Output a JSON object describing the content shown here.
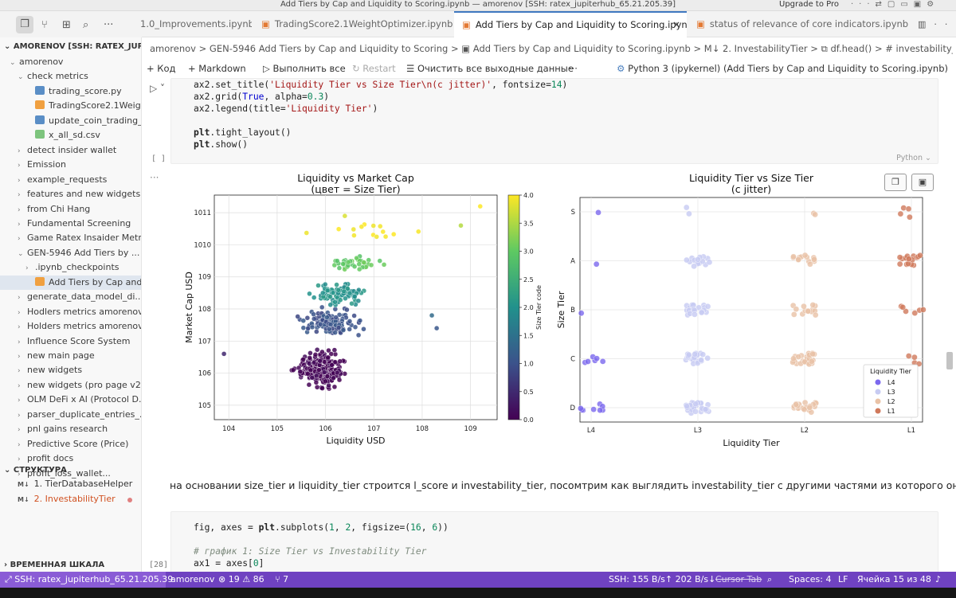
{
  "window": {
    "title": "Add Tiers by Cap and Liquidity to Scoring.ipynb — amorenov [SSH: ratex_jupiterhub_65.21.205.39]",
    "upgrade": "Upgrade to Pro"
  },
  "tabs": [
    {
      "label": "1.0_Improvements.ipynb",
      "active": false
    },
    {
      "label": "TradingScore2.1WeightOptimizer.ipynb",
      "active": false
    },
    {
      "label": "Add Tiers by Cap and Liquidity to Scoring.ipynb",
      "active": true
    },
    {
      "label": "status of relevance of core indicators.ipynb",
      "active": false
    }
  ],
  "sidebar": {
    "root": "AMORENOV [SSH: RATEX_JUPI...",
    "items": [
      {
        "label": "amorenov",
        "type": "folder-open",
        "indent": 1
      },
      {
        "label": "check metrics",
        "type": "folder-open",
        "indent": 2
      },
      {
        "label": "trading_score.py",
        "type": "py",
        "indent": 3
      },
      {
        "label": "TradingScore2.1Weight...",
        "type": "nb",
        "indent": 3
      },
      {
        "label": "update_coin_trading_sc...",
        "type": "py",
        "indent": 3
      },
      {
        "label": "x_all_sd.csv",
        "type": "csv",
        "indent": 3
      },
      {
        "label": "detect insider wallet",
        "type": "folder",
        "indent": 2
      },
      {
        "label": "Emission",
        "type": "folder",
        "indent": 2
      },
      {
        "label": "example_requests",
        "type": "folder",
        "indent": 2
      },
      {
        "label": "features and new widgets...",
        "type": "folder",
        "indent": 2
      },
      {
        "label": "from Chi Hang",
        "type": "folder",
        "indent": 2
      },
      {
        "label": "Fundamental Screening",
        "type": "folder",
        "indent": 2
      },
      {
        "label": "Game Ratex Insaider Metr...",
        "type": "folder",
        "indent": 2
      },
      {
        "label": "GEN-5946 Add Tiers by ...",
        "type": "folder-open",
        "indent": 2
      },
      {
        "label": ".ipynb_checkpoints",
        "type": "folder",
        "indent": 3
      },
      {
        "label": "Add Tiers by Cap and Li...",
        "type": "nb",
        "indent": 3,
        "selected": true
      },
      {
        "label": "generate_data_model_di...",
        "type": "folder",
        "indent": 2
      },
      {
        "label": "Hodlers metrics amorenov",
        "type": "folder",
        "indent": 2
      },
      {
        "label": "Holders metrics amorenov",
        "type": "folder",
        "indent": 2
      },
      {
        "label": "Influence Score System",
        "type": "folder",
        "indent": 2
      },
      {
        "label": "new main page",
        "type": "folder",
        "indent": 2
      },
      {
        "label": "new widgets",
        "type": "folder",
        "indent": 2
      },
      {
        "label": "new widgets (pro page v2...",
        "type": "folder",
        "indent": 2
      },
      {
        "label": "OLM DeFi x AI (Protocol D...",
        "type": "folder",
        "indent": 2
      },
      {
        "label": "parser_duplicate_entries_...",
        "type": "folder",
        "indent": 2
      },
      {
        "label": "pnl gains research",
        "type": "folder",
        "indent": 2
      },
      {
        "label": "Predictive Score (Price)",
        "type": "folder",
        "indent": 2
      },
      {
        "label": "profit docs",
        "type": "folder",
        "indent": 2
      },
      {
        "label": "profit_loss_wallet...",
        "type": "folder",
        "indent": 2
      }
    ],
    "outline_header": "СТРУКТУРА",
    "outline": [
      {
        "label": "1. TierDatabaseHelper",
        "tag": "M↓",
        "active": false
      },
      {
        "label": "2. InvestabilityTier",
        "tag": "M↓",
        "active": true
      }
    ],
    "timeline": "ВРЕМЕННАЯ ШКАЛА"
  },
  "breadcrumb": "amorenov > GEN-5946 Add Tiers by Cap and Liquidity to Scoring > ▣ Add Tiers by Cap and Liquidity to Scoring.ipynb > M↓ 2. InvestabilityTier > ⧉ df.head() > # investability_tier сделай как l_tier",
  "toolbar": {
    "code": "+ Код",
    "markdown": "+ Markdown",
    "run_all": "▷ Выполнить все",
    "restart": "↻ Restart",
    "clear": "☰ Очистить все выходные данные",
    "more": "···",
    "kernel": "Python 3 (ipykernel) (Add Tiers by Cap and Liquidity to Scoring.ipynb)"
  },
  "cell1": {
    "exec": "[ ]",
    "lang": "Python ⌄",
    "lines": [
      "ax2.set_title('Liquidity Tier vs Size Tier\\n(c jitter)', fontsize=14)",
      "ax2.grid(True, alpha=0.3)",
      "ax2.legend(title='Liquidity Tier')",
      "",
      "plt.tight_layout()",
      "plt.show()"
    ]
  },
  "markdown_text": "на основании size_tier и liquidity_tier строится l_score и investability_tier, посомтрим как выглядить investability_tier с другими частями из которого он строился",
  "cell2": {
    "exec": "[28]",
    "lines": [
      "fig, axes = plt.subplots(1, 2, figsize=(16, 6))",
      "",
      "# график 1: Size Tier vs Investability Tier",
      "ax1 = axes[0]"
    ]
  },
  "chart_data": [
    {
      "type": "scatter",
      "title": "Liquidity vs Market Cap\n(цвет = Size Tier)",
      "xlabel": "Liquidity USD",
      "ylabel": "Market Cap USD",
      "xscale": "log",
      "yscale": "log",
      "x_ticks": [
        "10^4",
        "10^5",
        "10^6",
        "10^7",
        "10^8",
        "10^9"
      ],
      "y_ticks": [
        "10^5",
        "10^6",
        "10^7",
        "10^8",
        "10^9",
        "10^10",
        "10^11"
      ],
      "colorbar": {
        "label": "Size Tier code",
        "min": 0.0,
        "max": 4.0,
        "ticks": [
          "0.0",
          "0.5",
          "1.0",
          "1.5",
          "2.0",
          "2.5",
          "3.0",
          "3.5",
          "4.0"
        ]
      },
      "grid": true,
      "clusters": [
        {
          "size_tier_code": 0,
          "logx_center": 5.9,
          "logx_spread": 0.45,
          "logy_center": 6.1,
          "logy_spread": 0.55,
          "count": 230
        },
        {
          "size_tier_code": 1,
          "logx_center": 6.1,
          "logx_spread": 0.55,
          "logy_center": 7.6,
          "logy_spread": 0.35,
          "count": 120
        },
        {
          "size_tier_code": 2,
          "logx_center": 6.3,
          "logx_spread": 0.55,
          "logy_center": 8.5,
          "logy_spread": 0.35,
          "count": 90
        },
        {
          "size_tier_code": 3,
          "logx_center": 6.6,
          "logx_spread": 0.5,
          "logy_center": 9.4,
          "logy_spread": 0.25,
          "count": 40
        },
        {
          "size_tier_code": 4,
          "logx_center": 7.0,
          "logx_spread": 1.0,
          "logy_center": 10.4,
          "logy_spread": 0.3,
          "count": 14
        }
      ],
      "outliers": [
        [
          3.9,
          6.6
        ],
        [
          8.2,
          7.8
        ],
        [
          8.3,
          7.4
        ],
        [
          9.2,
          11.2
        ],
        [
          8.8,
          10.6
        ],
        [
          6.4,
          10.9
        ]
      ]
    },
    {
      "type": "scatter",
      "title": "Liquidity Tier vs Size Tier\n(c jitter)",
      "xlabel": "Liquidity Tier",
      "ylabel": "Size Tier",
      "categories_x": [
        "L4",
        "L3",
        "L2",
        "L1"
      ],
      "categories_y": [
        "S",
        "A",
        "B",
        "C",
        "D"
      ],
      "legend": {
        "title": "Liquidity Tier",
        "entries": [
          "L4",
          "L3",
          "L2",
          "L1"
        ],
        "placement": "lower-right"
      },
      "colors": {
        "L4": "#7b68ee",
        "L3": "#c7cbf2",
        "L2": "#e9c2a6",
        "L1": "#d0795b"
      },
      "counts": {
        "L4": [
          1,
          1,
          1,
          6,
          8
        ],
        "L3": [
          2,
          14,
          20,
          26,
          30
        ],
        "L2": [
          2,
          14,
          14,
          26,
          24
        ],
        "L1": [
          4,
          16,
          6,
          4,
          0
        ]
      }
    }
  ],
  "statusbar": {
    "remote": "⤢ SSH: ratex_jupiterhub_65.21.205.39",
    "user": "amorenov",
    "problems": "⊗ 19 ⚠ 86",
    "ports": "⑂ 7",
    "net": "SSH: 155 B/s↑ 202 B/s↓",
    "cursor_tab": "Cursor Tab",
    "spaces": "Spaces: 4",
    "eol": "LF",
    "cell": "Ячейка 15 из 48",
    "bell": "🔔"
  }
}
